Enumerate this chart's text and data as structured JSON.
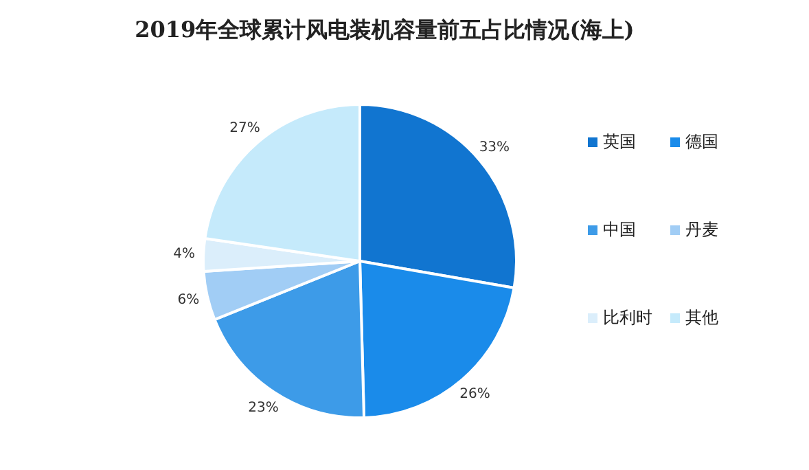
{
  "chart_data": {
    "type": "pie",
    "title": "2019年全球累计风电装机容量前五占比情况(海上)",
    "categories": [
      "英国",
      "德国",
      "中国",
      "丹麦",
      "比利时",
      "其他"
    ],
    "values": [
      33,
      26,
      23,
      6,
      4,
      27
    ],
    "value_labels": [
      "33%",
      "26%",
      "23%",
      "6%",
      "4%",
      "27%"
    ],
    "colors": [
      "#1175d0",
      "#1a8bea",
      "#3d9be8",
      "#a1cdf5",
      "#dbeefb",
      "#c5eafb"
    ],
    "legend": "right"
  }
}
